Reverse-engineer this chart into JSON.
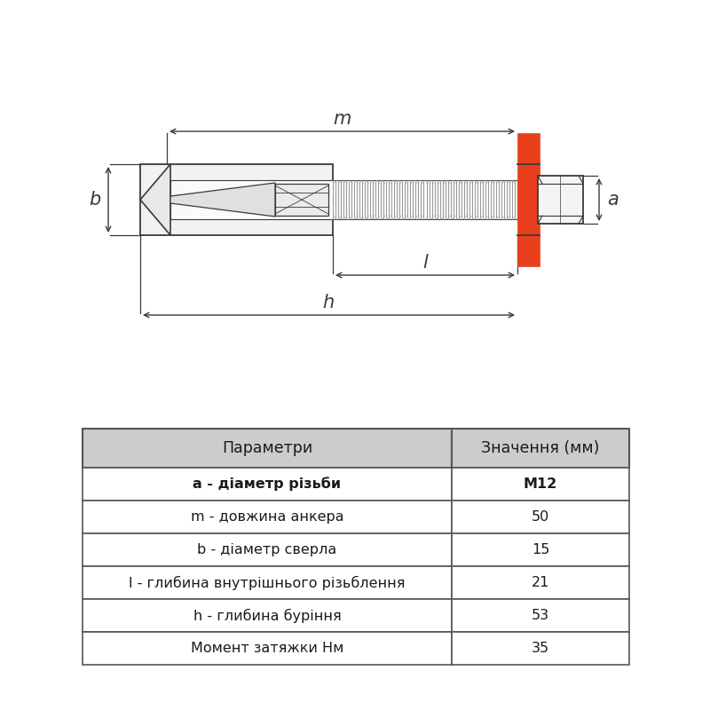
{
  "bg_color": "#ffffff",
  "line_color": "#3a3a3a",
  "red_color": "#e8401c",
  "table_header_bg": "#cccccc",
  "table_row_bg": "#ffffff",
  "table_border": "#555555",
  "table_params": [
    "Параметри",
    "Значення (мм)"
  ],
  "table_rows": [
    [
      "a - діаметр різьби",
      "M12"
    ],
    [
      "m - довжина анкера",
      "50"
    ],
    [
      "b - діаметр сверла",
      "15"
    ],
    [
      "l - глибина внутрішнього різьблення",
      "21"
    ],
    [
      "h - глибина буріння",
      "53"
    ],
    [
      "Момент затяжки Нм",
      "35"
    ]
  ],
  "bold_row": 0,
  "bold_val_row": 0
}
